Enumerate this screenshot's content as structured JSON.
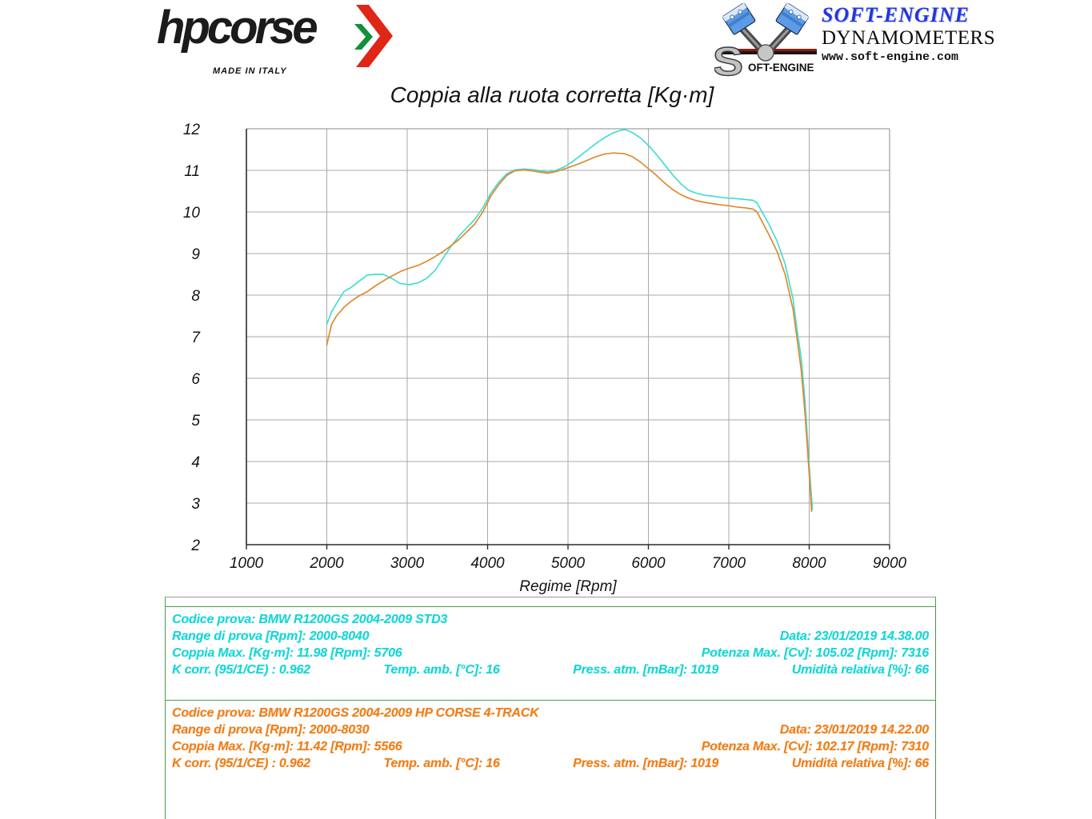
{
  "header": {
    "hpcorse": {
      "wordmark": "hpcorse",
      "tagline": "MADE IN ITALY",
      "arrow_colors": {
        "red": "#e02617",
        "green": "#12913d"
      }
    },
    "softengine": {
      "brand": "SOFT-ENGINE",
      "subtitle": "DYNAMOMETERS",
      "url": "www.soft-engine.com",
      "mark_s": "S",
      "mark_rest": "OFT-ENGINE",
      "brand_color": "#2336e0"
    }
  },
  "chart_data": {
    "type": "line",
    "title": "Coppia alla ruota corretta [Kg·m]",
    "xlabel": "Regime [Rpm]",
    "ylabel": "",
    "xlim": [
      1000,
      9000
    ],
    "ylim": [
      2,
      12
    ],
    "x_ticks": [
      1000,
      2000,
      3000,
      4000,
      5000,
      6000,
      7000,
      8000,
      9000
    ],
    "y_ticks": [
      2,
      3,
      4,
      5,
      6,
      7,
      8,
      9,
      10,
      11,
      12
    ],
    "grid": true,
    "legend_position": "none",
    "series": [
      {
        "name": "BMW R1200GS 2004-2009 STD3",
        "color": "#43ddd6",
        "points": [
          [
            2000,
            7.3
          ],
          [
            2060,
            7.6
          ],
          [
            2130,
            7.83
          ],
          [
            2210,
            8.08
          ],
          [
            2300,
            8.18
          ],
          [
            2400,
            8.33
          ],
          [
            2500,
            8.48
          ],
          [
            2600,
            8.5
          ],
          [
            2700,
            8.5
          ],
          [
            2810,
            8.4
          ],
          [
            2910,
            8.28
          ],
          [
            3030,
            8.25
          ],
          [
            3140,
            8.3
          ],
          [
            3240,
            8.4
          ],
          [
            3340,
            8.58
          ],
          [
            3440,
            8.87
          ],
          [
            3540,
            9.16
          ],
          [
            3640,
            9.41
          ],
          [
            3740,
            9.62
          ],
          [
            3840,
            9.82
          ],
          [
            3940,
            10.1
          ],
          [
            4040,
            10.45
          ],
          [
            4140,
            10.72
          ],
          [
            4240,
            10.92
          ],
          [
            4340,
            11.01
          ],
          [
            4450,
            11.03
          ],
          [
            4550,
            11.02
          ],
          [
            4650,
            10.99
          ],
          [
            4750,
            10.96
          ],
          [
            4850,
            11.0
          ],
          [
            4950,
            11.08
          ],
          [
            5050,
            11.2
          ],
          [
            5150,
            11.35
          ],
          [
            5250,
            11.5
          ],
          [
            5350,
            11.65
          ],
          [
            5450,
            11.78
          ],
          [
            5550,
            11.89
          ],
          [
            5650,
            11.96
          ],
          [
            5706,
            11.98
          ],
          [
            5800,
            11.91
          ],
          [
            5900,
            11.78
          ],
          [
            6000,
            11.6
          ],
          [
            6100,
            11.38
          ],
          [
            6200,
            11.14
          ],
          [
            6300,
            10.9
          ],
          [
            6400,
            10.68
          ],
          [
            6500,
            10.52
          ],
          [
            6600,
            10.45
          ],
          [
            6700,
            10.4
          ],
          [
            6800,
            10.38
          ],
          [
            6900,
            10.35
          ],
          [
            7000,
            10.33
          ],
          [
            7100,
            10.32
          ],
          [
            7200,
            10.3
          ],
          [
            7300,
            10.28
          ],
          [
            7350,
            10.22
          ],
          [
            7400,
            10.05
          ],
          [
            7500,
            9.7
          ],
          [
            7600,
            9.3
          ],
          [
            7700,
            8.75
          ],
          [
            7800,
            7.9
          ],
          [
            7850,
            7.15
          ],
          [
            7900,
            6.5
          ],
          [
            7950,
            5.4
          ],
          [
            8000,
            3.9
          ],
          [
            8040,
            2.85
          ]
        ]
      },
      {
        "name": "BMW R1200GS 2004-2009 HP CORSE 4-TRACK",
        "color": "#dd8a2e",
        "points": [
          [
            2000,
            6.8
          ],
          [
            2060,
            7.3
          ],
          [
            2120,
            7.5
          ],
          [
            2220,
            7.72
          ],
          [
            2300,
            7.85
          ],
          [
            2400,
            7.98
          ],
          [
            2500,
            8.08
          ],
          [
            2610,
            8.23
          ],
          [
            2710,
            8.35
          ],
          [
            2810,
            8.46
          ],
          [
            2930,
            8.58
          ],
          [
            3030,
            8.65
          ],
          [
            3140,
            8.72
          ],
          [
            3240,
            8.81
          ],
          [
            3340,
            8.92
          ],
          [
            3440,
            9.04
          ],
          [
            3540,
            9.18
          ],
          [
            3640,
            9.33
          ],
          [
            3740,
            9.52
          ],
          [
            3840,
            9.71
          ],
          [
            3940,
            10.0
          ],
          [
            4040,
            10.38
          ],
          [
            4140,
            10.66
          ],
          [
            4240,
            10.88
          ],
          [
            4340,
            10.99
          ],
          [
            4450,
            11.01
          ],
          [
            4550,
            10.99
          ],
          [
            4650,
            10.96
          ],
          [
            4750,
            10.93
          ],
          [
            4850,
            10.97
          ],
          [
            4950,
            11.03
          ],
          [
            5050,
            11.1
          ],
          [
            5150,
            11.17
          ],
          [
            5250,
            11.25
          ],
          [
            5350,
            11.33
          ],
          [
            5450,
            11.39
          ],
          [
            5566,
            11.42
          ],
          [
            5700,
            11.4
          ],
          [
            5800,
            11.33
          ],
          [
            5900,
            11.2
          ],
          [
            6000,
            11.04
          ],
          [
            6100,
            10.88
          ],
          [
            6200,
            10.7
          ],
          [
            6300,
            10.54
          ],
          [
            6400,
            10.42
          ],
          [
            6500,
            10.33
          ],
          [
            6600,
            10.27
          ],
          [
            6700,
            10.23
          ],
          [
            6800,
            10.2
          ],
          [
            6900,
            10.17
          ],
          [
            7000,
            10.15
          ],
          [
            7100,
            10.12
          ],
          [
            7200,
            10.1
          ],
          [
            7300,
            10.07
          ],
          [
            7350,
            10.0
          ],
          [
            7400,
            9.82
          ],
          [
            7500,
            9.45
          ],
          [
            7600,
            9.05
          ],
          [
            7700,
            8.5
          ],
          [
            7800,
            7.65
          ],
          [
            7850,
            6.95
          ],
          [
            7900,
            6.2
          ],
          [
            7950,
            5.1
          ],
          [
            8000,
            3.7
          ],
          [
            8030,
            2.8
          ]
        ]
      }
    ]
  },
  "tests": {
    "std3": {
      "codice": "Codice prova: BMW R1200GS 2004-2009 STD3",
      "range": "Range di prova [Rpm]: 2000-8040",
      "data": "Data: 23/01/2019  14.38.00",
      "coppia": "Coppia Max. [Kg·m]: 11.98  [Rpm]: 5706",
      "potenza": "Potenza Max. [Cv]: 105.02  [Rpm]: 7316",
      "kcorr": "K corr. (95/1/CE) : 0.962",
      "temp": "Temp. amb. [°C]: 16",
      "press": "Press. atm. [mBar]: 1019",
      "umidita": "Umidità relativa [%]: 66",
      "text_color": "#17d5d5"
    },
    "hpcorse": {
      "codice": "Codice prova: BMW R1200GS  2004-2009 HP CORSE 4-TRACK",
      "range": "Range di prova [Rpm]: 2000-8030",
      "data": "Data: 23/01/2019  14.22.00",
      "coppia": "Coppia Max. [Kg·m]: 11.42  [Rpm]: 5566",
      "potenza": "Potenza Max. [Cv]: 102.17  [Rpm]: 7310",
      "kcorr": "K corr. (95/1/CE) : 0.962",
      "temp": "Temp. amb. [°C]: 16",
      "press": "Press. atm. [mBar]: 1019",
      "umidita": "Umidità relativa [%]: 66",
      "text_color": "#f07d18"
    }
  },
  "colors": {
    "panel_border_green": "#4c9b4c",
    "grid_gray": "#a8a8a8",
    "axis_dark": "#2b2b2b"
  }
}
